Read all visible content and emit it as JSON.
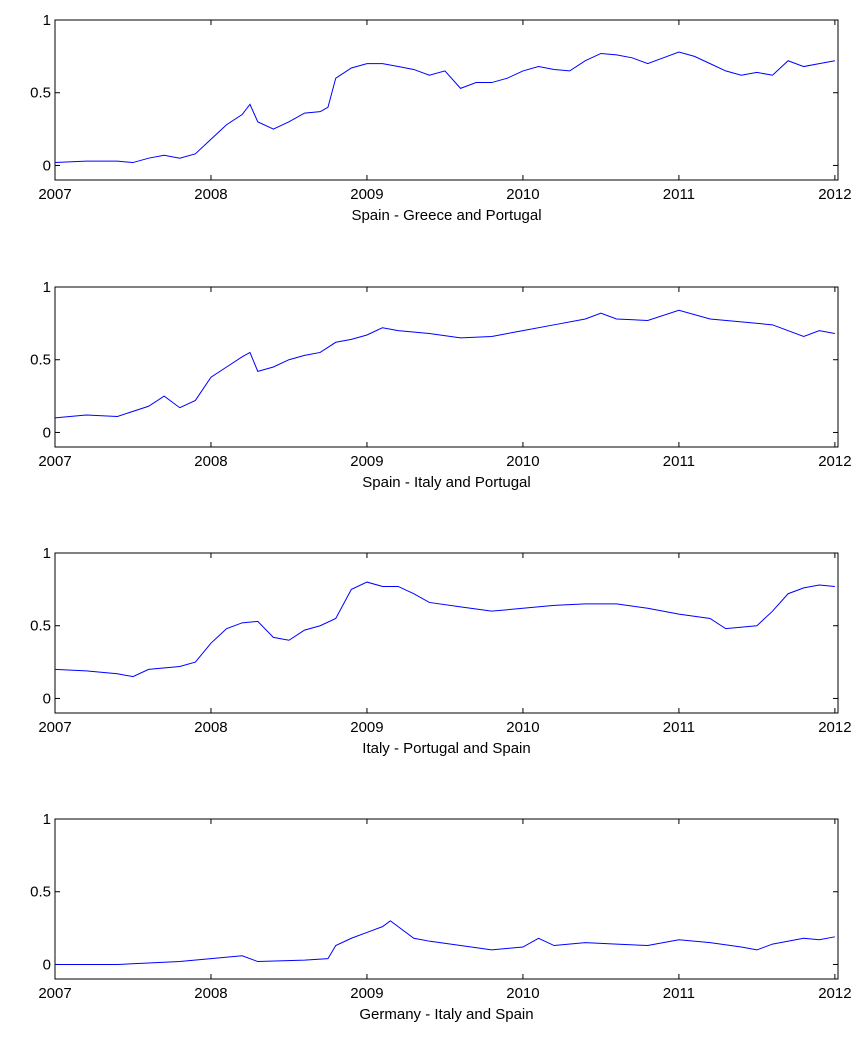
{
  "chart_data": [
    {
      "type": "line",
      "xlabel": "Spain - Greece and Portugal",
      "color": "#0000ff",
      "xlim": [
        2007,
        2012.02
      ],
      "ylim": [
        -0.1,
        1
      ],
      "xticks": [
        2007,
        2008,
        2009,
        2010,
        2011,
        2012
      ],
      "yticks": [
        0,
        0.5,
        1
      ],
      "x": [
        2007,
        2007.2,
        2007.4,
        2007.5,
        2007.6,
        2007.7,
        2007.8,
        2007.9,
        2008,
        2008.1,
        2008.2,
        2008.25,
        2008.3,
        2008.4,
        2008.5,
        2008.6,
        2008.7,
        2008.75,
        2008.8,
        2008.9,
        2009,
        2009.1,
        2009.2,
        2009.3,
        2009.4,
        2009.5,
        2009.6,
        2009.7,
        2009.8,
        2009.9,
        2010,
        2010.1,
        2010.2,
        2010.3,
        2010.4,
        2010.5,
        2010.6,
        2010.7,
        2010.8,
        2010.9,
        2011,
        2011.1,
        2011.2,
        2011.3,
        2011.4,
        2011.5,
        2011.6,
        2011.7,
        2011.8,
        2011.9,
        2012
      ],
      "values": [
        0.02,
        0.03,
        0.03,
        0.02,
        0.05,
        0.07,
        0.05,
        0.08,
        0.18,
        0.28,
        0.35,
        0.42,
        0.3,
        0.25,
        0.3,
        0.36,
        0.37,
        0.4,
        0.6,
        0.67,
        0.7,
        0.7,
        0.68,
        0.66,
        0.62,
        0.65,
        0.53,
        0.57,
        0.57,
        0.6,
        0.65,
        0.68,
        0.66,
        0.65,
        0.72,
        0.77,
        0.76,
        0.74,
        0.7,
        0.74,
        0.78,
        0.75,
        0.7,
        0.65,
        0.62,
        0.64,
        0.62,
        0.72,
        0.68,
        0.7,
        0.72
      ]
    },
    {
      "type": "line",
      "xlabel": "Spain - Italy and Portugal",
      "color": "#0000ff",
      "xlim": [
        2007,
        2012.02
      ],
      "ylim": [
        -0.1,
        1
      ],
      "xticks": [
        2007,
        2008,
        2009,
        2010,
        2011,
        2012
      ],
      "yticks": [
        0,
        0.5,
        1
      ],
      "x": [
        2007,
        2007.2,
        2007.4,
        2007.6,
        2007.7,
        2007.8,
        2007.9,
        2008,
        2008.1,
        2008.2,
        2008.25,
        2008.3,
        2008.4,
        2008.5,
        2008.6,
        2008.7,
        2008.8,
        2008.9,
        2009,
        2009.1,
        2009.2,
        2009.4,
        2009.6,
        2009.8,
        2010,
        2010.2,
        2010.4,
        2010.5,
        2010.6,
        2010.8,
        2011,
        2011.2,
        2011.4,
        2011.6,
        2011.8,
        2011.9,
        2012
      ],
      "values": [
        0.1,
        0.12,
        0.11,
        0.18,
        0.25,
        0.17,
        0.22,
        0.38,
        0.45,
        0.52,
        0.55,
        0.42,
        0.45,
        0.5,
        0.53,
        0.55,
        0.62,
        0.64,
        0.67,
        0.72,
        0.7,
        0.68,
        0.65,
        0.66,
        0.7,
        0.74,
        0.78,
        0.82,
        0.78,
        0.77,
        0.84,
        0.78,
        0.76,
        0.74,
        0.66,
        0.7,
        0.68
      ]
    },
    {
      "type": "line",
      "xlabel": "Italy - Portugal and Spain",
      "color": "#0000ff",
      "xlim": [
        2007,
        2012.02
      ],
      "ylim": [
        -0.1,
        1
      ],
      "xticks": [
        2007,
        2008,
        2009,
        2010,
        2011,
        2012
      ],
      "yticks": [
        0,
        0.5,
        1
      ],
      "x": [
        2007,
        2007.2,
        2007.4,
        2007.5,
        2007.6,
        2007.8,
        2007.9,
        2008,
        2008.1,
        2008.2,
        2008.3,
        2008.4,
        2008.5,
        2008.6,
        2008.7,
        2008.8,
        2008.9,
        2009,
        2009.1,
        2009.2,
        2009.3,
        2009.4,
        2009.6,
        2009.8,
        2010,
        2010.2,
        2010.4,
        2010.6,
        2010.8,
        2011,
        2011.2,
        2011.3,
        2011.5,
        2011.6,
        2011.7,
        2011.8,
        2011.9,
        2012
      ],
      "values": [
        0.2,
        0.19,
        0.17,
        0.15,
        0.2,
        0.22,
        0.25,
        0.38,
        0.48,
        0.52,
        0.53,
        0.42,
        0.4,
        0.47,
        0.5,
        0.55,
        0.75,
        0.8,
        0.77,
        0.77,
        0.72,
        0.66,
        0.63,
        0.6,
        0.62,
        0.64,
        0.65,
        0.65,
        0.62,
        0.58,
        0.55,
        0.48,
        0.5,
        0.6,
        0.72,
        0.76,
        0.78,
        0.77
      ]
    },
    {
      "type": "line",
      "xlabel": "Germany - Italy and Spain",
      "color": "#0000ff",
      "xlim": [
        2007,
        2012.02
      ],
      "ylim": [
        -0.1,
        1
      ],
      "xticks": [
        2007,
        2008,
        2009,
        2010,
        2011,
        2012
      ],
      "yticks": [
        0,
        0.5,
        1
      ],
      "x": [
        2007,
        2007.4,
        2007.6,
        2007.8,
        2008,
        2008.2,
        2008.3,
        2008.6,
        2008.75,
        2008.8,
        2008.9,
        2009,
        2009.1,
        2009.15,
        2009.2,
        2009.3,
        2009.4,
        2009.6,
        2009.8,
        2010,
        2010.1,
        2010.2,
        2010.4,
        2010.6,
        2010.8,
        2011,
        2011.2,
        2011.4,
        2011.5,
        2011.6,
        2011.8,
        2011.9,
        2012
      ],
      "values": [
        0,
        0,
        0.01,
        0.02,
        0.04,
        0.06,
        0.02,
        0.03,
        0.04,
        0.13,
        0.18,
        0.22,
        0.26,
        0.3,
        0.26,
        0.18,
        0.16,
        0.13,
        0.1,
        0.12,
        0.18,
        0.13,
        0.15,
        0.14,
        0.13,
        0.17,
        0.15,
        0.12,
        0.1,
        0.14,
        0.18,
        0.17,
        0.19
      ]
    }
  ]
}
